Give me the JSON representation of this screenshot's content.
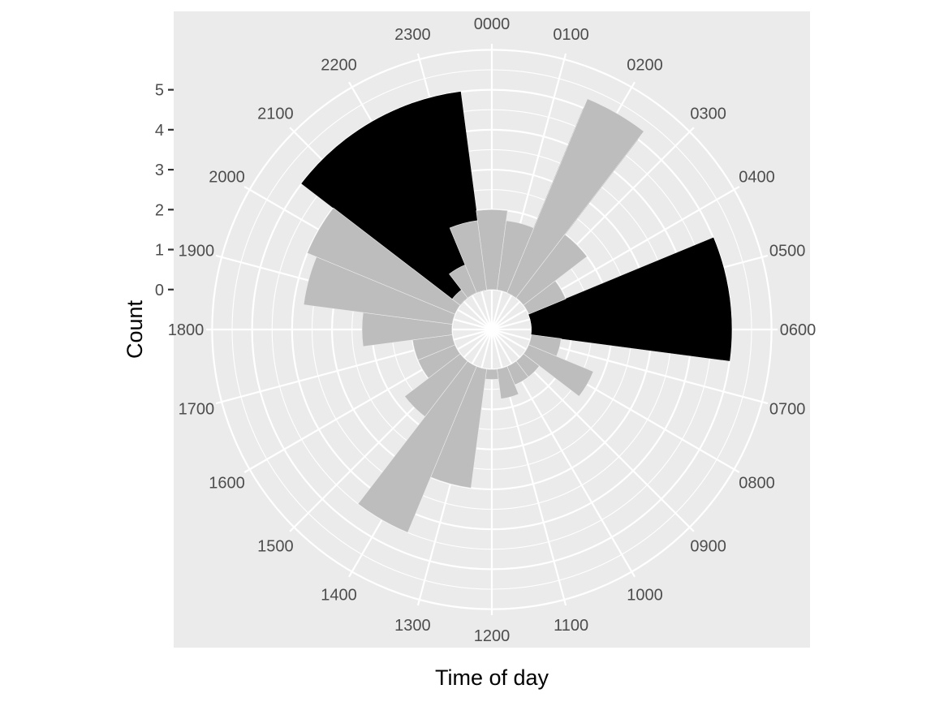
{
  "chart_data": {
    "type": "bar",
    "coord": "polar",
    "xlabel": "Time of day",
    "ylabel": "Count",
    "categories": [
      "0000",
      "0100",
      "0200",
      "0300",
      "0400",
      "0500",
      "0600",
      "0700",
      "0800",
      "0900",
      "1000",
      "1100",
      "1200",
      "1300",
      "1400",
      "1500",
      "1600",
      "1700",
      "1800",
      "1900",
      "2000",
      "2100",
      "2200",
      "2300"
    ],
    "series": [
      {
        "values": [
          0,
          0,
          5,
          0,
          0,
          5,
          5,
          0,
          0,
          0,
          0,
          0,
          0,
          0,
          0,
          0,
          0,
          0,
          0,
          0,
          0,
          5,
          5,
          5
        ],
        "color": "#000000"
      },
      {
        "values": [
          2,
          1.75,
          5.25,
          2,
          1,
          0,
          0,
          0.75,
          1.75,
          0.5,
          0.5,
          0.75,
          0.25,
          3,
          4.5,
          1.75,
          1,
          1,
          2.25,
          3.75,
          4,
          0.25,
          0.75,
          1.75
        ],
        "color": "#bdbdbd"
      }
    ],
    "y_ticks": [
      0,
      1,
      2,
      3,
      4,
      5
    ],
    "y_tick_labels": [
      "0",
      "1",
      "2",
      "3",
      "4",
      "5"
    ],
    "ylim": [
      -1,
      6.15
    ],
    "panel_background": "#ebebeb",
    "grid_color": "#ffffff",
    "grid": true
  }
}
